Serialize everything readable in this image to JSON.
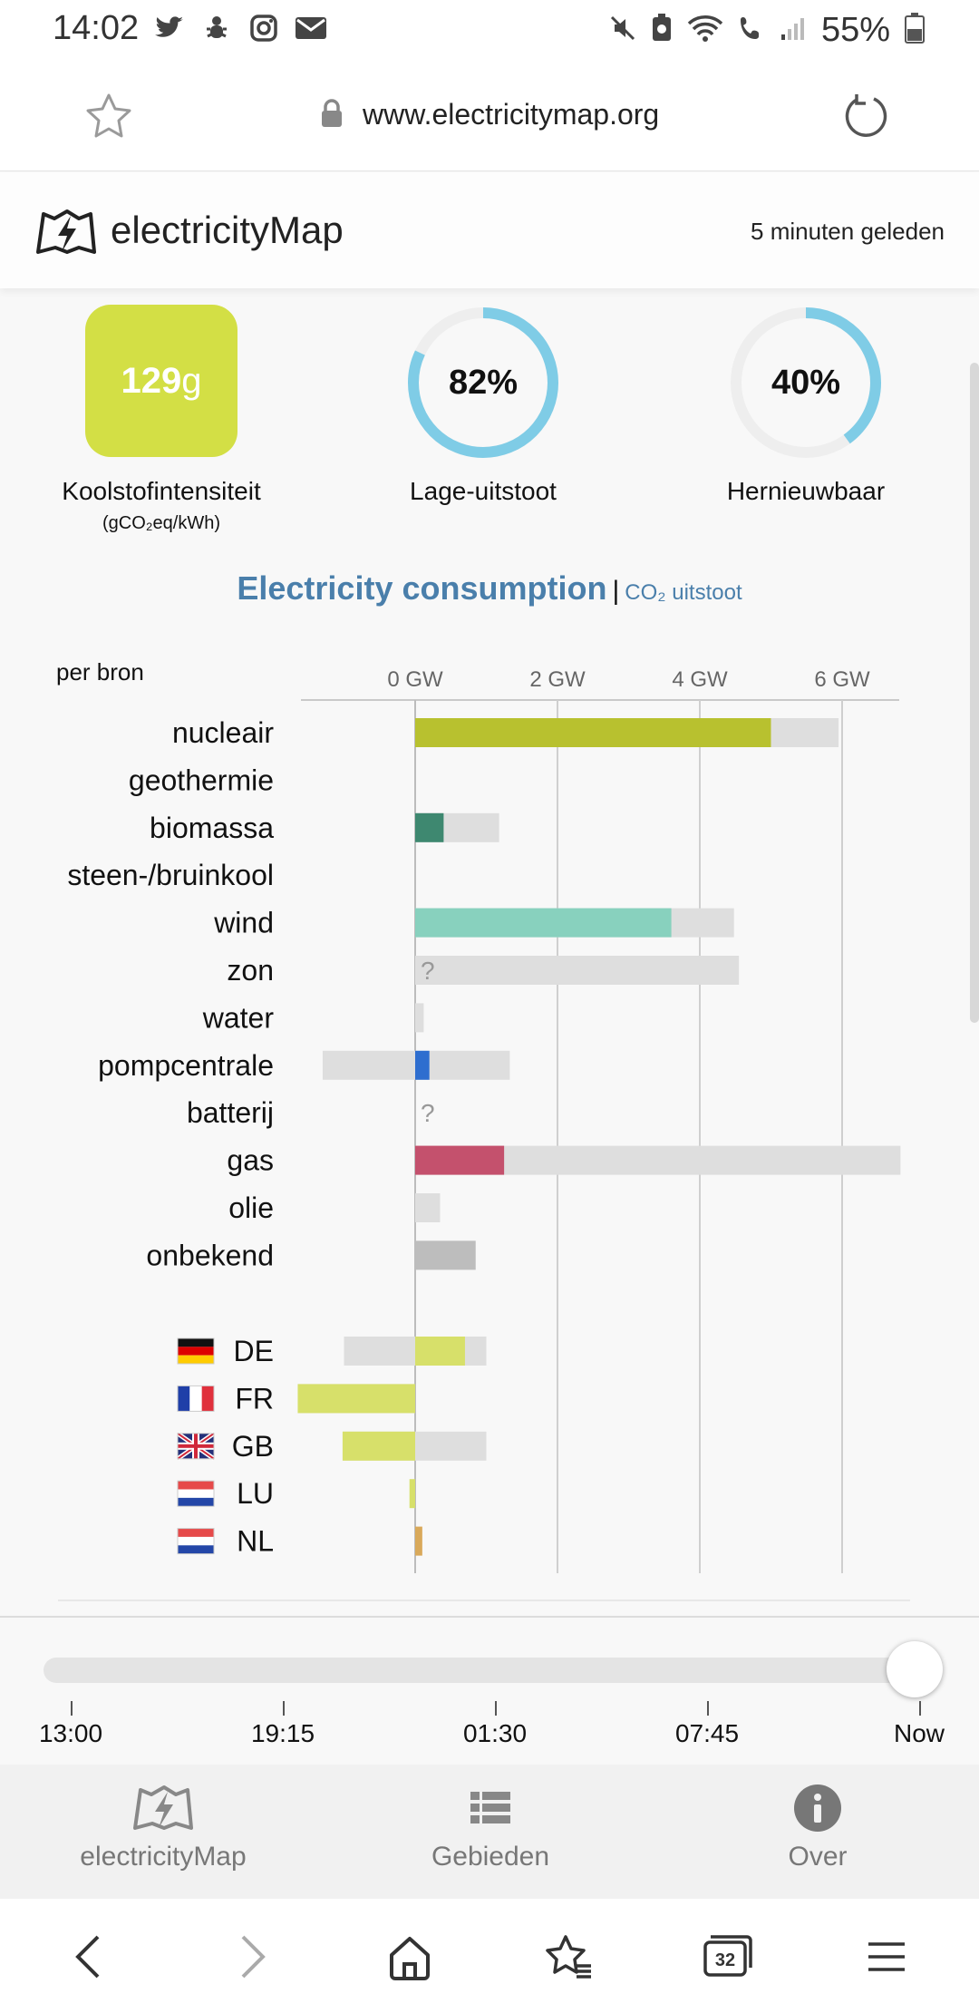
{
  "status_bar": {
    "time": "14:02",
    "battery": "55%"
  },
  "browser": {
    "url": "www.electricitymap.org",
    "tabs_count": "32"
  },
  "header": {
    "brand": "electricityMap",
    "updated": "5 minuten geleden"
  },
  "kpis": {
    "carbon": {
      "value": "129",
      "unit": "g",
      "label": "Koolstofintensiteit",
      "sublabel": "(gCO₂eq/kWh)"
    },
    "low_carbon": {
      "value": "82%",
      "fraction": 0.82,
      "label": "Lage-uitstoot"
    },
    "renewable": {
      "value": "40%",
      "fraction": 0.4,
      "label": "Hernieuwbaar"
    }
  },
  "section": {
    "title": "Electricity consumption",
    "separator": "|",
    "alt": "CO₂ uitstoot"
  },
  "chart_data": {
    "type": "bar",
    "group_label": "per bron",
    "x_ticks": [
      "0 GW",
      "2 GW",
      "4 GW",
      "6 GW"
    ],
    "xlim": [
      -1.6,
      6.8
    ],
    "unit": "GW",
    "colors": {
      "capacity": "#dedede",
      "unknown": "#bdbdbd",
      "nucleair": "#b8c12f",
      "biomassa": "#3e8870",
      "wind": "#88d1be",
      "pompcentrale": "#2e6ecf",
      "gas": "#c4516d",
      "import": "#d7e06a",
      "lu": "#d7e06a",
      "nl": "#d9a95a"
    },
    "sources": [
      {
        "name": "nucleair",
        "value": 5.0,
        "cap_min": 0,
        "cap_max": 5.95
      },
      {
        "name": "geothermie",
        "value": null,
        "cap_min": null,
        "cap_max": null
      },
      {
        "name": "biomassa",
        "value": 0.4,
        "cap_min": 0,
        "cap_max": 1.18
      },
      {
        "name": "steen-/bruinkool",
        "value": null,
        "cap_min": null,
        "cap_max": null
      },
      {
        "name": "wind",
        "value": 3.6,
        "cap_min": 0,
        "cap_max": 4.48
      },
      {
        "name": "zon",
        "value": "?",
        "cap_min": 0,
        "cap_max": 4.55
      },
      {
        "name": "water",
        "value": 0,
        "cap_min": 0,
        "cap_max": 0.12
      },
      {
        "name": "pompcentrale",
        "value": 0.2,
        "cap_min": -1.3,
        "cap_max": 1.33
      },
      {
        "name": "batterij",
        "value": "?",
        "cap_min": null,
        "cap_max": null
      },
      {
        "name": "gas",
        "value": 1.25,
        "cap_min": 0,
        "cap_max": 6.82
      },
      {
        "name": "olie",
        "value": 0,
        "cap_min": 0,
        "cap_max": 0.35
      },
      {
        "name": "onbekend",
        "value": 0.85,
        "cap_min": 0,
        "cap_max": 0.85
      }
    ],
    "exchanges": [
      {
        "code": "DE",
        "value": 0.7,
        "cap_min": -1.0,
        "cap_max": 1.0
      },
      {
        "code": "FR",
        "value": -1.65,
        "cap_min": -1.65,
        "cap_max": 0
      },
      {
        "code": "GB",
        "value": -1.02,
        "cap_min": -1.02,
        "cap_max": 1.0
      },
      {
        "code": "LU",
        "value": -0.08,
        "cap_min": null,
        "cap_max": null
      },
      {
        "code": "NL",
        "value": 0.1,
        "cap_min": null,
        "cap_max": null
      }
    ]
  },
  "timeline": {
    "labels": [
      "13:00",
      "19:15",
      "01:30",
      "07:45",
      "Now"
    ]
  },
  "bottom_nav": [
    {
      "label": "electricityMap",
      "icon": "electricitymap-logo-icon"
    },
    {
      "label": "Gebieden",
      "icon": "list-icon"
    },
    {
      "label": "Over",
      "icon": "info-icon"
    }
  ]
}
